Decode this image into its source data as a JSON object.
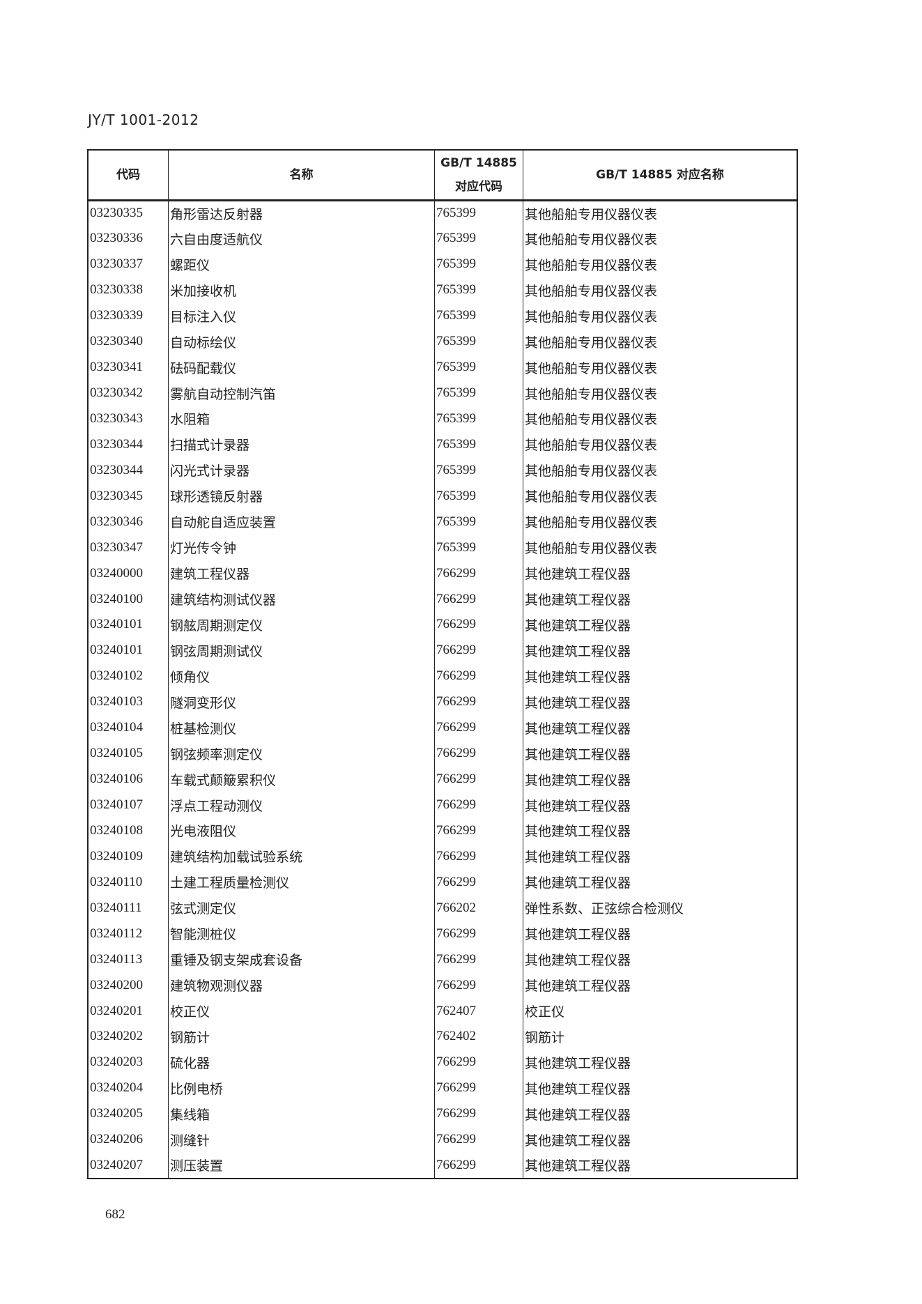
{
  "header": {
    "doc_id": "JY/T 1001-2012"
  },
  "table": {
    "columns": [
      "代码",
      "名称",
      "GB/T 14885 对应代码",
      "GB/T 14885 对应名称"
    ],
    "column_lines": [
      [
        "代码"
      ],
      [
        "名称"
      ],
      [
        "GB/T 14885",
        "对应代码"
      ],
      [
        "GB/T 14885 对应名称"
      ]
    ],
    "rows": [
      [
        "03230335",
        "角形雷达反射器",
        "765399",
        "其他船舶专用仪器仪表"
      ],
      [
        "03230336",
        "六自由度适航仪",
        "765399",
        "其他船舶专用仪器仪表"
      ],
      [
        "03230337",
        "螺距仪",
        "765399",
        "其他船舶专用仪器仪表"
      ],
      [
        "03230338",
        "米加接收机",
        "765399",
        "其他船舶专用仪器仪表"
      ],
      [
        "03230339",
        "目标注入仪",
        "765399",
        "其他船舶专用仪器仪表"
      ],
      [
        "03230340",
        "自动标绘仪",
        "765399",
        "其他船舶专用仪器仪表"
      ],
      [
        "03230341",
        "砝码配载仪",
        "765399",
        "其他船舶专用仪器仪表"
      ],
      [
        "03230342",
        "雾航自动控制汽笛",
        "765399",
        "其他船舶专用仪器仪表"
      ],
      [
        "03230343",
        "水阻箱",
        "765399",
        "其他船舶专用仪器仪表"
      ],
      [
        "03230344",
        "扫描式计录器",
        "765399",
        "其他船舶专用仪器仪表"
      ],
      [
        "03230344",
        "闪光式计录器",
        "765399",
        "其他船舶专用仪器仪表"
      ],
      [
        "03230345",
        "球形透镜反射器",
        "765399",
        "其他船舶专用仪器仪表"
      ],
      [
        "03230346",
        "自动舵自适应装置",
        "765399",
        "其他船舶专用仪器仪表"
      ],
      [
        "03230347",
        "灯光传令钟",
        "765399",
        "其他船舶专用仪器仪表"
      ],
      [
        "03240000",
        "建筑工程仪器",
        "766299",
        "其他建筑工程仪器"
      ],
      [
        "03240100",
        "建筑结构测试仪器",
        "766299",
        "其他建筑工程仪器"
      ],
      [
        "03240101",
        "钢舷周期测定仪",
        "766299",
        "其他建筑工程仪器"
      ],
      [
        "03240101",
        "钢弦周期测试仪",
        "766299",
        "其他建筑工程仪器"
      ],
      [
        "03240102",
        "倾角仪",
        "766299",
        "其他建筑工程仪器"
      ],
      [
        "03240103",
        "隧洞变形仪",
        "766299",
        "其他建筑工程仪器"
      ],
      [
        "03240104",
        "桩基检测仪",
        "766299",
        "其他建筑工程仪器"
      ],
      [
        "03240105",
        "钢弦频率测定仪",
        "766299",
        "其他建筑工程仪器"
      ],
      [
        "03240106",
        "车载式颠簸累积仪",
        "766299",
        "其他建筑工程仪器"
      ],
      [
        "03240107",
        "浮点工程动测仪",
        "766299",
        "其他建筑工程仪器"
      ],
      [
        "03240108",
        "光电液阻仪",
        "766299",
        "其他建筑工程仪器"
      ],
      [
        "03240109",
        "建筑结构加载试验系统",
        "766299",
        "其他建筑工程仪器"
      ],
      [
        "03240110",
        "土建工程质量检测仪",
        "766299",
        "其他建筑工程仪器"
      ],
      [
        "03240111",
        "弦式测定仪",
        "766202",
        "弹性系数、正弦综合检测仪"
      ],
      [
        "03240112",
        "智能测桩仪",
        "766299",
        "其他建筑工程仪器"
      ],
      [
        "03240113",
        "重锤及钢支架成套设备",
        "766299",
        "其他建筑工程仪器"
      ],
      [
        "03240200",
        "建筑物观测仪器",
        "766299",
        "其他建筑工程仪器"
      ],
      [
        "03240201",
        "校正仪",
        "762407",
        "校正仪"
      ],
      [
        "03240202",
        "钢筋计",
        "762402",
        "钢筋计"
      ],
      [
        "03240203",
        "硫化器",
        "766299",
        "其他建筑工程仪器"
      ],
      [
        "03240204",
        "比例电桥",
        "766299",
        "其他建筑工程仪器"
      ],
      [
        "03240205",
        "集线箱",
        "766299",
        "其他建筑工程仪器"
      ],
      [
        "03240206",
        "测缝针",
        "766299",
        "其他建筑工程仪器"
      ],
      [
        "03240207",
        "测压装置",
        "766299",
        "其他建筑工程仪器"
      ]
    ]
  },
  "footer": {
    "page_number": "682"
  }
}
